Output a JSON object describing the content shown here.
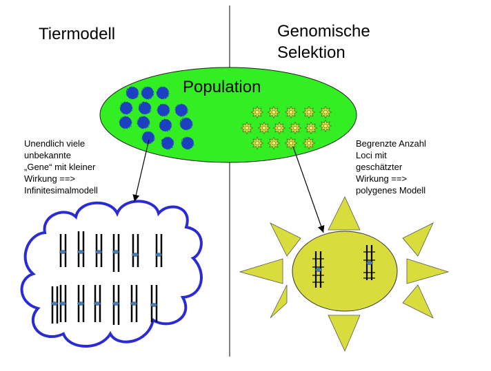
{
  "left_column": {
    "title": "Tiermodell",
    "description": "Unendlich viele\nunbekannte\n„Gene“ mit kleiner\nWirkung ==>\nInfinitesimalmodell"
  },
  "right_column": {
    "title": "Genomische\nSelektion",
    "description": "Begrenzte Anzahl\nLoci mit\ngeschätzter\nWirkung ==>\npolygenes Modell"
  },
  "population": {
    "label": "Population",
    "fill_color": "#33ee22",
    "blue_blob_color": "#1e3fbf",
    "star_color": "#d8dc3c"
  },
  "cloud": {
    "outline_color": "#2b2bd6",
    "chromosome_pair_count": 13
  },
  "sun": {
    "fill_color": "#d8dc3c",
    "chromosome_pair_count": 2
  }
}
